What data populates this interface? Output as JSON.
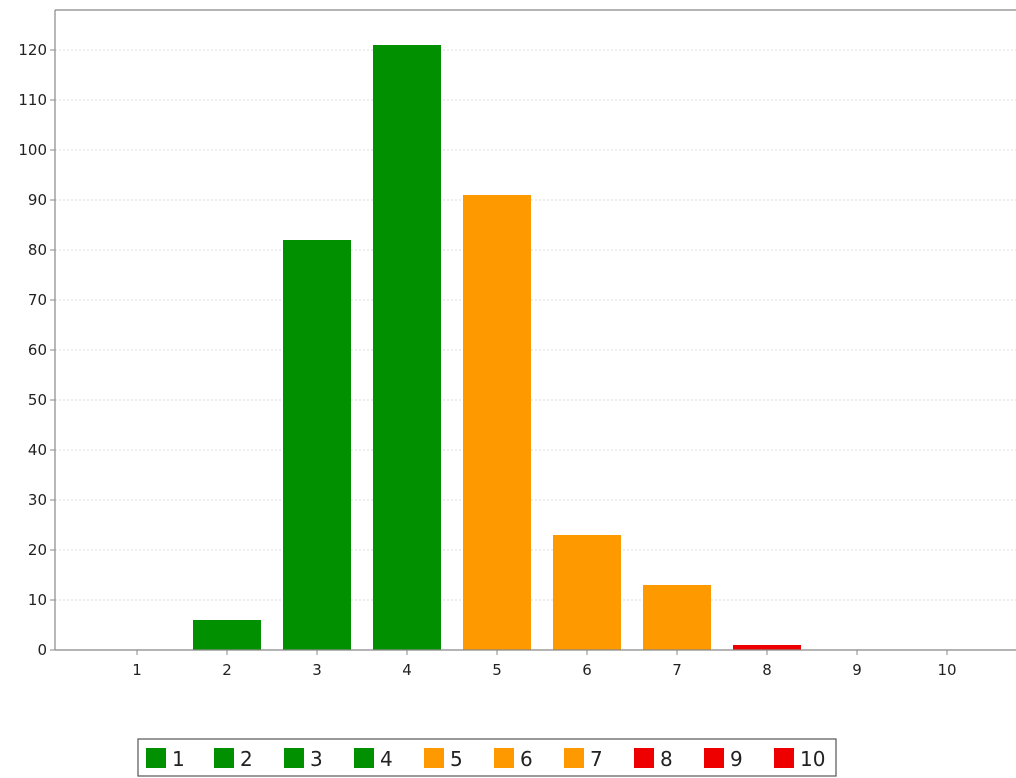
{
  "chart_data": {
    "type": "bar",
    "title": "",
    "xlabel": "",
    "ylabel": "",
    "categories": [
      "1",
      "2",
      "3",
      "4",
      "5",
      "6",
      "7",
      "8",
      "9",
      "10"
    ],
    "values": [
      0,
      6,
      82,
      121,
      91,
      23,
      13,
      1,
      0,
      0
    ],
    "bar_colors": [
      "#009000",
      "#009000",
      "#009000",
      "#009000",
      "#ff9900",
      "#ff9900",
      "#ff9900",
      "#ee0000",
      "#ee0000",
      "#ee0000"
    ],
    "yticks": [
      0,
      10,
      20,
      30,
      40,
      50,
      60,
      70,
      80,
      90,
      100,
      110,
      120
    ],
    "ylim": [
      0,
      128
    ],
    "grid": true,
    "legend": {
      "placement": "bottom-center",
      "entries": [
        {
          "label": "1",
          "color": "#009000"
        },
        {
          "label": "2",
          "color": "#009000"
        },
        {
          "label": "3",
          "color": "#009000"
        },
        {
          "label": "4",
          "color": "#009000"
        },
        {
          "label": "5",
          "color": "#ff9900"
        },
        {
          "label": "6",
          "color": "#ff9900"
        },
        {
          "label": "7",
          "color": "#ff9900"
        },
        {
          "label": "8",
          "color": "#ee0000"
        },
        {
          "label": "9",
          "color": "#ee0000"
        },
        {
          "label": "10",
          "color": "#ee0000"
        }
      ]
    }
  }
}
